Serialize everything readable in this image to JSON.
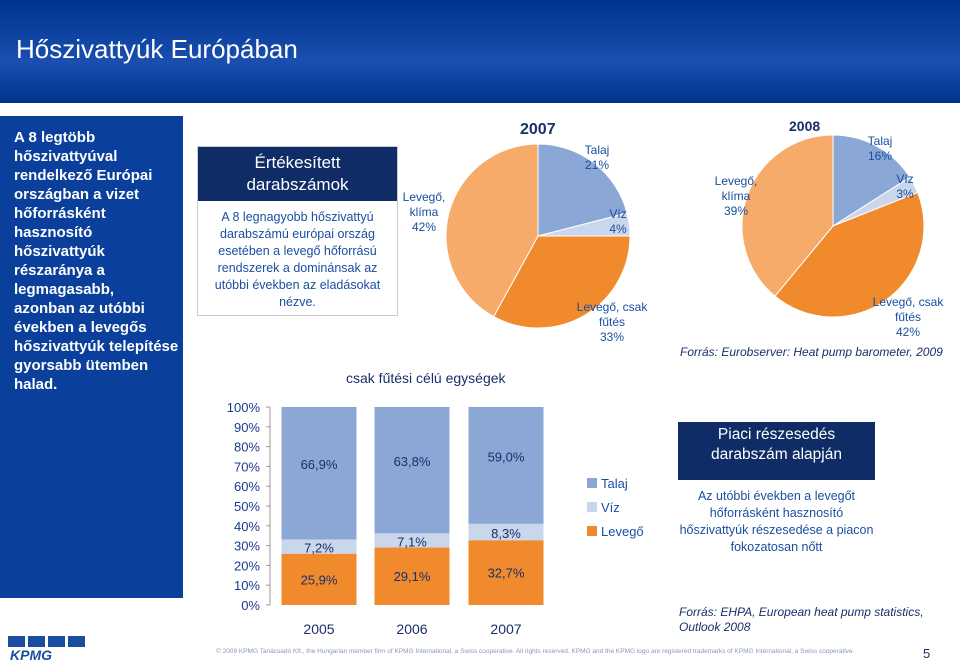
{
  "slide": {
    "title": "Hőszivattyúk Európában",
    "side_text": "A 8 legtöbb hőszivattyúval rendelkező Európai országban a vizet hőforrásként hasznosító hőszivattyúk részaránya a legmagasabb, azonban az utóbbi években a levegős hőszivattyúk telepítése gyorsabb ütemben halad.",
    "page_number": "5",
    "footer": "© 2009 KPMG Tanácsadó Kft., the Hungarian member firm of KPMG International, a Swiss cooperative. All rights reserved. KPMG and the KPMG logo are registered trademarks of KPMG International, a Swiss cooperative.",
    "logo_text": "KPMG"
  },
  "info_box": {
    "title": "Értékesített darabszámok",
    "body": "A 8 legnagyobb hőszivattyú darabszámú európai ország esetében a levegő hőforrású rendszerek a dominánsak az utóbbi években az eladásokat nézve."
  },
  "right_box": {
    "title": "Piaci részesedés darabszám alapján",
    "body": "Az utóbbi években a levegőt hőforrásként hasznosító hőszivattyúk részesedése a piacon fokozatosan nőtt"
  },
  "sources": {
    "top": "Forrás: Eurobserver: Heat pump barometer, 2009",
    "bottom": "Forrás: EHPA, European heat pump statistics, Outlook 2008"
  },
  "colors": {
    "talaj": "#8ba7d6",
    "viz": "#c9d6ec",
    "levego": "#f08a2d",
    "levego_light": "#f6ab6a"
  },
  "chart_data": [
    {
      "type": "pie",
      "title": "2007",
      "slices": [
        {
          "label": "Talaj",
          "value": 21,
          "display": "21%"
        },
        {
          "label": "Víz",
          "value": 4,
          "display": "4%"
        },
        {
          "label": "Levegő, csak fűtés",
          "value": 33,
          "display": "33%"
        },
        {
          "label": "Levegő, klíma",
          "value": 42,
          "display": "42%"
        }
      ]
    },
    {
      "type": "pie",
      "title": "2008",
      "slices": [
        {
          "label": "Talaj",
          "value": 16,
          "display": "16%"
        },
        {
          "label": "Víz",
          "value": 3,
          "display": "3%"
        },
        {
          "label": "Levegő, csak fűtés",
          "value": 42,
          "display": "42%"
        },
        {
          "label": "Levegő, klíma",
          "value": 39,
          "display": "39%"
        }
      ]
    },
    {
      "type": "bar",
      "stacked": true,
      "title": "csak fűtési célú egységek",
      "categories": [
        "2005",
        "2006",
        "2007"
      ],
      "yticks": [
        "0%",
        "10%",
        "20%",
        "30%",
        "40%",
        "50%",
        "60%",
        "70%",
        "80%",
        "90%",
        "100%"
      ],
      "ylim": [
        0,
        100
      ],
      "series": [
        {
          "name": "Levegő",
          "values": [
            25.9,
            29.1,
            32.7
          ],
          "labels": [
            "25,9%",
            "29,1%",
            "32,7%"
          ]
        },
        {
          "name": "Víz",
          "values": [
            7.2,
            7.1,
            8.3
          ],
          "labels": [
            "7,2%",
            "7,1%",
            "8,3%"
          ]
        },
        {
          "name": "Talaj",
          "values": [
            66.9,
            63.8,
            59.0
          ],
          "labels": [
            "66,9%",
            "63,8%",
            "59,0%"
          ]
        }
      ],
      "legend": [
        "Talaj",
        "Víz",
        "Levegő"
      ],
      "legend_position": "right"
    }
  ]
}
